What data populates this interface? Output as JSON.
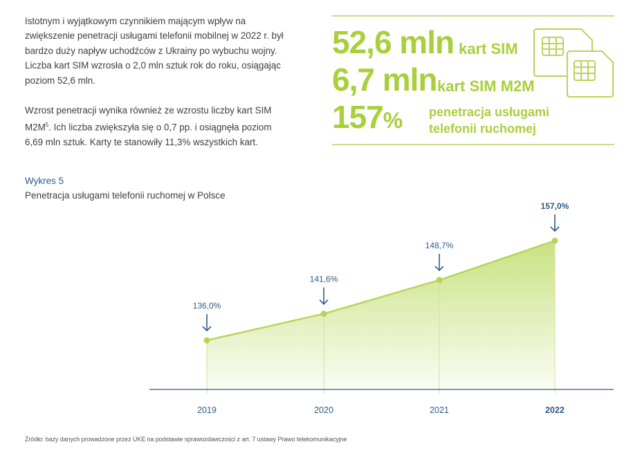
{
  "intro": {
    "p1_lines": [
      "Istotnym i wyjątkowym czynnikiem mającym wpływ na",
      "zwiększenie penetracji usługami telefonii mobilnej w 2022 r. był",
      "bardzo duży napływ uchodźców z Ukrainy po wybuchu wojny.",
      "Liczba kart SIM wzrosła o 2,0 mln sztuk rok do roku, osiągając",
      "poziom 52,6 mln."
    ],
    "p2_line1_a": "Wzrost penetracji wynika również ze wzrostu liczby kart SIM",
    "p2_line2_a": "M2M",
    "p2_line2_sup": "5",
    "p2_line2_b": ". Ich liczba zwiększyła się o 0,7 pp. i osiągnęła poziom",
    "p2_line3": "6,69 mln sztuk. Karty te stanowiły 11,3% wszystkich kart."
  },
  "kpis": {
    "sim_value": "52,6 mln",
    "sim_label": "kart SIM",
    "m2m_value": "6,7 mln",
    "m2m_label": "kart SIM M2M",
    "penetration_value": "157",
    "penetration_unit": "%",
    "penetration_label_1": "penetracja usługami",
    "penetration_label_2": "telefonii ruchomej",
    "icon": "sim-card-icon",
    "accent_color": "#a9cf3b",
    "line_color": "#c7dc8a"
  },
  "chart_label": "Wykres 5",
  "chart_title": "Penetracja usługami telefonii ruchomej w Polsce",
  "chart_data": {
    "type": "area",
    "categories": [
      "2019",
      "2020",
      "2021",
      "2022"
    ],
    "values": [
      136.0,
      141.6,
      148.7,
      157.0
    ],
    "data_labels": [
      "136,0%",
      "141,6%",
      "148,7%",
      "157,0%"
    ],
    "highlight_category": "2022",
    "title": "Penetracja usługami telefonii ruchomej w Polsce",
    "xlabel": "",
    "ylabel": "",
    "grid": false,
    "colors": {
      "line": "#b8d458",
      "fill": "#c6e07a",
      "label": "#2e5a8a",
      "axis": "#2e5a8a"
    }
  },
  "source": "Źródło: bazy danych prowadzone przez UKE na podstawie sprawozdawczości z art. 7 ustawy Prawo telekomunikacyjne"
}
